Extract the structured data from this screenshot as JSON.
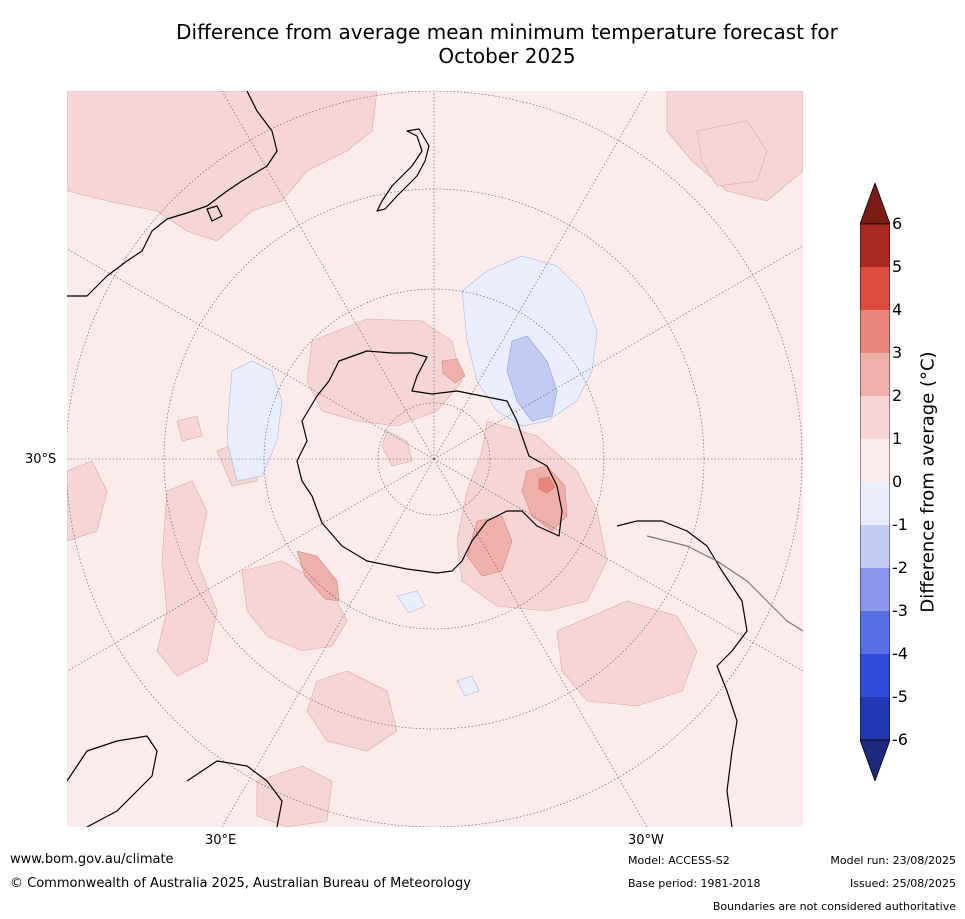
{
  "title_line1": "Difference from average mean minimum temperature forecast for",
  "title_line2": "October 2025",
  "map": {
    "lat_label": "30°S",
    "lon_labels": [
      "30°E",
      "30°W"
    ]
  },
  "legend": {
    "label": "Difference from average (°C)",
    "ticks": [
      "6",
      "5",
      "4",
      "3",
      "2",
      "1",
      "0",
      "-1",
      "-2",
      "-3",
      "-4",
      "-5",
      "-6"
    ],
    "colors": {
      "above_6": "#7b1c16",
      "5_to_6": "#a82a22",
      "4_to_5": "#dc4d40",
      "3_to_4": "#e8857c",
      "2_to_3": "#efb0aa",
      "1_to_2": "#f5d6d4",
      "0_to_1": "#fbeceb",
      "m1_to_0": "#eaeefc",
      "m2_to_m1": "#c1cbf4",
      "m3_to_m2": "#8896ec",
      "m4_to_m3": "#5a6ee4",
      "m5_to_m4": "#2f4cdb",
      "m6_to_m5": "#2538b4",
      "below_m6": "#1c2a80"
    }
  },
  "footer": {
    "website": "www.bom.gov.au/climate",
    "copyright": "© Commonwealth of Australia 2025, Australian Bureau of Meteorology",
    "model": "Model: ACCESS-S2",
    "base_period": "Base period: 1981-2018",
    "model_run": "Model run: 23/08/2025",
    "issued": "Issued: 25/08/2025",
    "disclaimer": "Boundaries are not considered authoritative"
  }
}
